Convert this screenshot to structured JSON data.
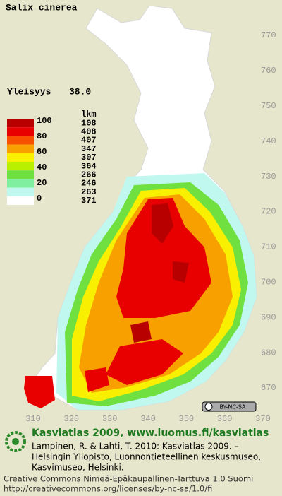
{
  "title": "Salix cinerea",
  "frequency": {
    "label": "Yleisyys",
    "value": "38.0"
  },
  "legend": {
    "scale": [
      100,
      80,
      60,
      40,
      20,
      0
    ],
    "count_header": "lkm",
    "classes": [
      {
        "color": "#b80000",
        "count": 108
      },
      {
        "color": "#e80000",
        "count": 408
      },
      {
        "color": "#f85000",
        "count": 407
      },
      {
        "color": "#f8a000",
        "count": 347
      },
      {
        "color": "#f8f000",
        "count": 307
      },
      {
        "color": "#b8f000",
        "count": 364
      },
      {
        "color": "#70e040",
        "count": 266
      },
      {
        "color": "#80f0a0",
        "count": 246
      },
      {
        "color": "#c0f8f0",
        "count": 263
      },
      {
        "color": "#ffffff",
        "count": 371
      }
    ]
  },
  "map": {
    "northing_labels": [
      770,
      760,
      750,
      740,
      730,
      720,
      710,
      700,
      690,
      680,
      670
    ],
    "easting_labels": [
      310,
      320,
      330,
      340,
      350,
      360,
      370
    ],
    "license_badge": "BY-NC-SA"
  },
  "footer": {
    "heading": "Kasviatlas 2009, www.luomus.fi/kasviatlas",
    "citation": [
      "Lampinen, R. & Lahti, T. 2010: Kasviatlas 2009. –",
      "Helsingin Yliopisto, Luonnontieteellinen keskusmuseo,",
      "Kasvimuseo, Helsinki."
    ],
    "license": [
      "Creative Commons Nimeä-Epäkaupallinen-Tarttuva 1.0 Suomi",
      "http://creativecommons.org/licenses/by-nc-sa/1.0/fi"
    ]
  }
}
